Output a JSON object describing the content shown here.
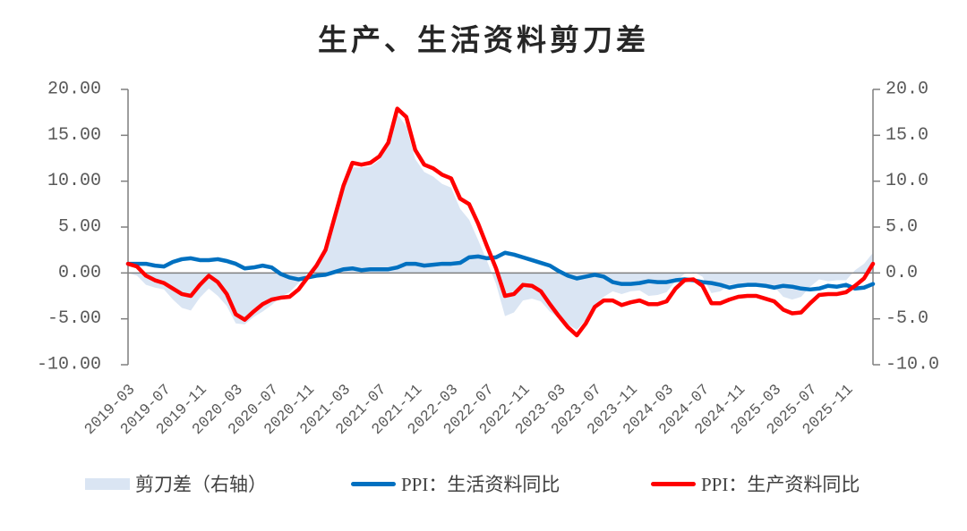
{
  "chart_data": {
    "type": "line",
    "title": "生产、生活资料剪刀差",
    "x": [
      "2019-03",
      "2019-04",
      "2019-05",
      "2019-06",
      "2019-07",
      "2019-08",
      "2019-09",
      "2019-10",
      "2019-11",
      "2019-12",
      "2020-01",
      "2020-02",
      "2020-03",
      "2020-04",
      "2020-05",
      "2020-06",
      "2020-07",
      "2020-08",
      "2020-09",
      "2020-10",
      "2020-11",
      "2020-12",
      "2021-01",
      "2021-02",
      "2021-03",
      "2021-04",
      "2021-05",
      "2021-06",
      "2021-07",
      "2021-08",
      "2021-09",
      "2021-10",
      "2021-11",
      "2021-12",
      "2022-01",
      "2022-02",
      "2022-03",
      "2022-04",
      "2022-05",
      "2022-06",
      "2022-07",
      "2022-08",
      "2022-09",
      "2022-10",
      "2022-11",
      "2022-12",
      "2023-01",
      "2023-02",
      "2023-03",
      "2023-04",
      "2023-05",
      "2023-06",
      "2023-07",
      "2023-08",
      "2023-09",
      "2023-10",
      "2023-11",
      "2023-12",
      "2024-01",
      "2024-02",
      "2024-03",
      "2024-04",
      "2024-05",
      "2024-06",
      "2024-07",
      "2024-08",
      "2024-09",
      "2024-10",
      "2024-11",
      "2024-12",
      "2025-01",
      "2025-02",
      "2025-03",
      "2025-04",
      "2025-05",
      "2025-06",
      "2025-07",
      "2025-08",
      "2025-09",
      "2025-10",
      "2025-11",
      "2025-12",
      "2026-01",
      "2026-02"
    ],
    "xticks": [
      "2019-03",
      "2019-07",
      "2019-11",
      "2020-03",
      "2020-07",
      "2020-11",
      "2021-03",
      "2021-07",
      "2021-11",
      "2022-03",
      "2022-07",
      "2022-11",
      "2023-03",
      "2023-07",
      "2023-11",
      "2024-03",
      "2024-07",
      "2024-11",
      "2025-03",
      "2025-07",
      "2025-11"
    ],
    "y_left": {
      "range": [
        -10,
        20
      ],
      "ticks": [
        "20.00",
        "15.00",
        "10.00",
        "5.00",
        "0.00",
        "-5.00",
        "-10.00"
      ]
    },
    "y_right": {
      "range": [
        -10,
        20
      ],
      "ticks": [
        "20.0",
        "15.0",
        "10.0",
        "5.0",
        "0.0",
        "-5.0",
        "-10.0"
      ]
    },
    "grid": false,
    "legend": "bottom",
    "series": [
      {
        "name": "剪刀差（右轴）",
        "type": "area",
        "axis": "right",
        "color": "#dae5f3",
        "values": [
          0.0,
          -0.3,
          -1.3,
          -1.6,
          -1.8,
          -2.9,
          -3.8,
          -4.1,
          -2.7,
          -1.7,
          -2.5,
          -3.6,
          -5.5,
          -5.6,
          -4.8,
          -4.2,
          -3.5,
          -2.6,
          -2.1,
          -1.1,
          0.0,
          1.1,
          2.7,
          5.9,
          9.1,
          11.5,
          11.5,
          11.6,
          12.3,
          13.8,
          17.3,
          16.0,
          12.4,
          11.0,
          10.5,
          9.7,
          9.3,
          7.0,
          5.8,
          3.6,
          1.3,
          -1.2,
          -4.7,
          -4.3,
          -3.0,
          -2.8,
          -3.1,
          -4.2,
          -4.9,
          -5.6,
          -6.2,
          -5.1,
          -3.5,
          -2.6,
          -2.0,
          -2.3,
          -2.0,
          -1.9,
          -2.5,
          -2.4,
          -2.1,
          -0.9,
          -0.1,
          0.1,
          -0.4,
          -2.2,
          -2.0,
          -1.3,
          -1.2,
          -1.2,
          -1.2,
          -1.4,
          -1.5,
          -2.6,
          -2.9,
          -2.6,
          -1.5,
          -0.7,
          -0.9,
          -0.8,
          -0.8,
          0.3,
          1.0,
          2.2
        ]
      },
      {
        "name": "PPI：生活资料同比",
        "type": "line",
        "axis": "left",
        "color": "#0070c0",
        "values": [
          1.0,
          1.0,
          1.0,
          0.8,
          0.7,
          1.2,
          1.5,
          1.6,
          1.4,
          1.4,
          1.5,
          1.3,
          1.0,
          0.5,
          0.6,
          0.8,
          0.6,
          -0.1,
          -0.5,
          -0.7,
          -0.5,
          -0.3,
          -0.2,
          0.1,
          0.4,
          0.5,
          0.3,
          0.4,
          0.4,
          0.4,
          0.6,
          1.0,
          1.0,
          0.8,
          0.9,
          1.0,
          1.0,
          1.1,
          1.7,
          1.8,
          1.6,
          1.7,
          2.2,
          2.0,
          1.7,
          1.4,
          1.1,
          0.8,
          0.2,
          -0.3,
          -0.6,
          -0.4,
          -0.2,
          -0.4,
          -1.0,
          -1.2,
          -1.2,
          -1.1,
          -0.9,
          -1.0,
          -1.0,
          -0.8,
          -0.7,
          -0.8,
          -1.0,
          -1.1,
          -1.3,
          -1.6,
          -1.4,
          -1.3,
          -1.3,
          -1.4,
          -1.6,
          -1.4,
          -1.5,
          -1.7,
          -1.8,
          -1.7,
          -1.4,
          -1.5,
          -1.3,
          -1.7,
          -1.6,
          -1.2
        ]
      },
      {
        "name": "PPI：生产资料同比",
        "type": "line",
        "axis": "left",
        "color": "#ff0000",
        "values": [
          1.0,
          0.7,
          -0.3,
          -0.8,
          -1.1,
          -1.7,
          -2.3,
          -2.5,
          -1.3,
          -0.3,
          -1.0,
          -2.3,
          -4.5,
          -5.1,
          -4.2,
          -3.4,
          -2.9,
          -2.7,
          -2.6,
          -1.8,
          -0.5,
          0.8,
          2.5,
          6.0,
          9.5,
          12.0,
          11.8,
          12.0,
          12.7,
          14.2,
          17.9,
          17.0,
          13.4,
          11.8,
          11.4,
          10.7,
          10.3,
          8.1,
          7.5,
          5.4,
          2.9,
          0.5,
          -2.5,
          -2.3,
          -1.3,
          -1.4,
          -2.0,
          -3.4,
          -4.7,
          -5.9,
          -6.8,
          -5.5,
          -3.7,
          -3.0,
          -3.0,
          -3.5,
          -3.2,
          -3.0,
          -3.4,
          -3.4,
          -3.1,
          -1.7,
          -0.8,
          -0.7,
          -1.4,
          -3.3,
          -3.3,
          -2.9,
          -2.6,
          -2.5,
          -2.5,
          -2.8,
          -3.1,
          -4.0,
          -4.4,
          -4.3,
          -3.3,
          -2.4,
          -2.3,
          -2.3,
          -2.1,
          -1.4,
          -0.6,
          1.0
        ]
      }
    ],
    "axis_color": "#7f7f7f"
  }
}
